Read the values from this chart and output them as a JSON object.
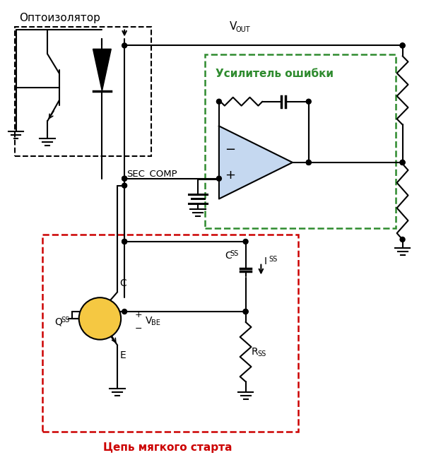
{
  "bg_color": "#ffffff",
  "line_color": "#000000",
  "green_color": "#2e8b2e",
  "red_color": "#cc0000",
  "transistor_fill": "#f5c842",
  "opamp_fill": "#c5d8f0",
  "fig_width": 6.0,
  "fig_height": 6.44,
  "dpi": 100,
  "label_optocoupler": "Оптоизолятор",
  "label_error_amp": "Усилитель ошибки",
  "label_soft_start": "Цепь мягкого старта"
}
